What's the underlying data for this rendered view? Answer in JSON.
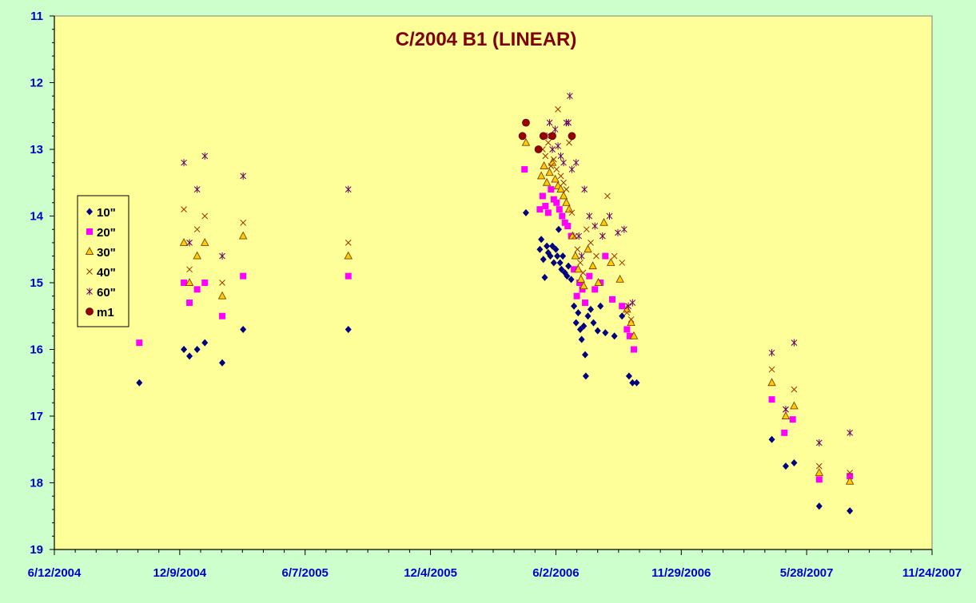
{
  "chart_data": {
    "type": "scatter",
    "title": "C/2004 B1 (LINEAR)",
    "xlabel": "",
    "ylabel": "",
    "x_range": [
      "6/12/2004",
      "11/24/2007"
    ],
    "x_ticks": [
      "6/12/2004",
      "12/9/2004",
      "6/7/2005",
      "12/4/2005",
      "6/2/2006",
      "11/29/2006",
      "5/28/2007",
      "11/24/2007"
    ],
    "y_range": [
      11,
      19
    ],
    "y_reversed": true,
    "y_ticks": [
      "11",
      "12",
      "13",
      "14",
      "15",
      "16",
      "17",
      "18",
      "19"
    ],
    "grid": false,
    "legend_position": "left",
    "colors": {
      "background": "#ccffcc",
      "plot_area": "#ffff99",
      "axis_text": "#0000cc",
      "title": "#800000"
    },
    "series": [
      {
        "name": "10\"",
        "marker": "diamond",
        "color": "#000080",
        "points": [
          [
            "10/12/2004",
            16.5
          ],
          [
            "12/15/2004",
            16.0
          ],
          [
            "12/23/2004",
            16.1
          ],
          [
            "1/3/2005",
            16.0
          ],
          [
            "1/14/2005",
            15.9
          ],
          [
            "2/8/2005",
            16.2
          ],
          [
            "3/10/2005",
            15.7
          ],
          [
            "8/8/2005",
            15.7
          ],
          [
            "4/20/2006",
            13.95
          ],
          [
            "5/10/2006",
            14.5
          ],
          [
            "5/12/2006",
            14.35
          ],
          [
            "5/15/2006",
            14.65
          ],
          [
            "5/17/2006",
            14.92
          ],
          [
            "5/20/2006",
            14.45
          ],
          [
            "5/22/2006",
            14.55
          ],
          [
            "5/25/2006",
            14.6
          ],
          [
            "5/28/2006",
            14.45
          ],
          [
            "5/30/2006",
            14.7
          ],
          [
            "6/2/2006",
            14.5
          ],
          [
            "6/4/2006",
            14.6
          ],
          [
            "6/6/2006",
            14.2
          ],
          [
            "6/8/2006",
            14.7
          ],
          [
            "6/10/2006",
            14.8
          ],
          [
            "6/12/2006",
            14.6
          ],
          [
            "6/15/2006",
            14.85
          ],
          [
            "6/18/2006",
            14.9
          ],
          [
            "6/20/2006",
            14.75
          ],
          [
            "6/24/2006",
            14.95
          ],
          [
            "6/28/2006",
            15.35
          ],
          [
            "7/1/2006",
            15.6
          ],
          [
            "7/4/2006",
            15.45
          ],
          [
            "7/7/2006",
            15.7
          ],
          [
            "7/9/2006",
            15.85
          ],
          [
            "7/12/2006",
            15.65
          ],
          [
            "7/14/2006",
            16.08
          ],
          [
            "7/15/2006",
            16.4
          ],
          [
            "7/18/2006",
            15.5
          ],
          [
            "7/22/2006",
            15.4
          ],
          [
            "7/26/2006",
            15.6
          ],
          [
            "8/1/2006",
            15.72
          ],
          [
            "8/5/2006",
            15.35
          ],
          [
            "8/12/2006",
            15.75
          ],
          [
            "8/25/2006",
            15.8
          ],
          [
            "9/5/2006",
            15.5
          ],
          [
            "9/15/2006",
            16.4
          ],
          [
            "9/20/2006",
            16.5
          ],
          [
            "9/26/2006",
            16.5
          ],
          [
            "4/8/2007",
            17.35
          ],
          [
            "4/28/2007",
            17.75
          ],
          [
            "5/10/2007",
            17.7
          ],
          [
            "6/15/2007",
            18.35
          ],
          [
            "7/29/2007",
            18.42
          ]
        ]
      },
      {
        "name": "20\"",
        "marker": "square",
        "color": "#ff00ff",
        "points": [
          [
            "10/12/2004",
            15.9
          ],
          [
            "12/15/2004",
            15.0
          ],
          [
            "12/23/2004",
            15.3
          ],
          [
            "1/3/2005",
            15.1
          ],
          [
            "1/14/2005",
            15.0
          ],
          [
            "2/8/2005",
            15.5
          ],
          [
            "3/10/2005",
            14.9
          ],
          [
            "8/8/2005",
            14.9
          ],
          [
            "4/18/2006",
            13.3
          ],
          [
            "5/10/2006",
            13.9
          ],
          [
            "5/14/2006",
            13.7
          ],
          [
            "5/18/2006",
            13.85
          ],
          [
            "5/22/2006",
            13.95
          ],
          [
            "5/26/2006",
            13.6
          ],
          [
            "5/30/2006",
            13.75
          ],
          [
            "6/3/2006",
            13.8
          ],
          [
            "6/7/2006",
            13.9
          ],
          [
            "6/11/2006",
            14.0
          ],
          [
            "6/15/2006",
            14.1
          ],
          [
            "6/19/2006",
            14.15
          ],
          [
            "6/24/2006",
            14.3
          ],
          [
            "6/28/2006",
            14.8
          ],
          [
            "7/2/2006",
            15.2
          ],
          [
            "7/6/2006",
            15.0
          ],
          [
            "7/10/2006",
            15.1
          ],
          [
            "7/14/2006",
            15.3
          ],
          [
            "7/20/2006",
            14.9
          ],
          [
            "7/28/2006",
            15.1
          ],
          [
            "8/5/2006",
            15.0
          ],
          [
            "8/12/2006",
            14.6
          ],
          [
            "8/22/2006",
            15.25
          ],
          [
            "9/5/2006",
            15.35
          ],
          [
            "9/12/2006",
            15.7
          ],
          [
            "9/16/2006",
            15.8
          ],
          [
            "9/22/2006",
            16.0
          ],
          [
            "4/8/2007",
            16.75
          ],
          [
            "4/26/2007",
            17.25
          ],
          [
            "5/8/2007",
            17.05
          ],
          [
            "6/15/2007",
            17.95
          ],
          [
            "7/29/2007",
            17.9
          ]
        ]
      },
      {
        "name": "30\"",
        "marker": "triangle",
        "color": "#ffcc00",
        "points": [
          [
            "12/15/2004",
            14.4
          ],
          [
            "12/23/2004",
            15.0
          ],
          [
            "1/3/2005",
            14.6
          ],
          [
            "1/14/2005",
            14.4
          ],
          [
            "2/8/2005",
            15.2
          ],
          [
            "3/10/2005",
            14.3
          ],
          [
            "8/8/2005",
            14.6
          ],
          [
            "4/20/2006",
            12.9
          ],
          [
            "5/12/2006",
            13.4
          ],
          [
            "5/16/2006",
            13.25
          ],
          [
            "5/20/2006",
            13.5
          ],
          [
            "5/24/2006",
            13.35
          ],
          [
            "5/28/2006",
            13.2
          ],
          [
            "6/1/2006",
            13.45
          ],
          [
            "6/5/2006",
            13.55
          ],
          [
            "6/9/2006",
            13.6
          ],
          [
            "6/13/2006",
            13.7
          ],
          [
            "6/17/2006",
            13.8
          ],
          [
            "6/21/2006",
            13.9
          ],
          [
            "6/26/2006",
            14.3
          ],
          [
            "6/30/2006",
            14.6
          ],
          [
            "7/4/2006",
            14.8
          ],
          [
            "7/8/2006",
            14.95
          ],
          [
            "7/12/2006",
            15.05
          ],
          [
            "7/18/2006",
            14.5
          ],
          [
            "7/25/2006",
            14.75
          ],
          [
            "8/2/2006",
            15.0
          ],
          [
            "8/10/2006",
            14.1
          ],
          [
            "8/20/2006",
            14.7
          ],
          [
            "9/2/2006",
            14.95
          ],
          [
            "9/12/2006",
            15.4
          ],
          [
            "9/18/2006",
            15.6
          ],
          [
            "9/22/2006",
            15.8
          ],
          [
            "4/8/2007",
            16.5
          ],
          [
            "4/28/2007",
            17.0
          ],
          [
            "5/10/2007",
            16.85
          ],
          [
            "6/15/2007",
            17.85
          ],
          [
            "7/29/2007",
            17.98
          ]
        ]
      },
      {
        "name": "40\"",
        "marker": "x",
        "color": "#993300",
        "points": [
          [
            "12/15/2004",
            13.9
          ],
          [
            "12/23/2004",
            14.8
          ],
          [
            "1/3/2005",
            14.2
          ],
          [
            "1/14/2005",
            14.0
          ],
          [
            "2/8/2005",
            15.0
          ],
          [
            "3/10/2005",
            14.1
          ],
          [
            "8/8/2005",
            14.4
          ],
          [
            "5/14/2006",
            13.0
          ],
          [
            "5/18/2006",
            13.1
          ],
          [
            "5/22/2006",
            12.9
          ],
          [
            "5/26/2006",
            13.25
          ],
          [
            "5/30/2006",
            13.15
          ],
          [
            "6/3/2006",
            13.3
          ],
          [
            "6/5/2006",
            12.4
          ],
          [
            "6/9/2006",
            13.4
          ],
          [
            "6/13/2006",
            13.5
          ],
          [
            "6/17/2006",
            13.6
          ],
          [
            "6/21/2006",
            12.9
          ],
          [
            "6/25/2006",
            13.95
          ],
          [
            "6/29/2006",
            14.3
          ],
          [
            "7/3/2006",
            14.5
          ],
          [
            "7/7/2006",
            14.7
          ],
          [
            "7/11/2006",
            14.85
          ],
          [
            "7/16/2006",
            14.2
          ],
          [
            "7/22/2006",
            14.4
          ],
          [
            "7/30/2006",
            14.6
          ],
          [
            "8/8/2006",
            14.3
          ],
          [
            "8/15/2006",
            13.7
          ],
          [
            "8/25/2006",
            14.6
          ],
          [
            "9/5/2006",
            14.7
          ],
          [
            "9/12/2006",
            15.45
          ],
          [
            "9/18/2006",
            15.55
          ],
          [
            "4/8/2007",
            16.3
          ],
          [
            "4/28/2007",
            16.9
          ],
          [
            "5/10/2007",
            16.6
          ],
          [
            "6/15/2007",
            17.75
          ],
          [
            "7/29/2007",
            17.85
          ]
        ]
      },
      {
        "name": "60\"",
        "marker": "star",
        "color": "#660066",
        "points": [
          [
            "12/15/2004",
            13.2
          ],
          [
            "12/23/2004",
            14.4
          ],
          [
            "1/3/2005",
            13.6
          ],
          [
            "1/14/2005",
            13.1
          ],
          [
            "2/8/2005",
            14.6
          ],
          [
            "3/10/2005",
            13.4
          ],
          [
            "8/8/2005",
            13.6
          ],
          [
            "5/20/2006",
            12.8
          ],
          [
            "5/24/2006",
            12.6
          ],
          [
            "5/28/2006",
            13.0
          ],
          [
            "6/1/2006",
            12.7
          ],
          [
            "6/5/2006",
            12.95
          ],
          [
            "6/9/2006",
            13.1
          ],
          [
            "6/13/2006",
            13.2
          ],
          [
            "6/17/2006",
            12.6
          ],
          [
            "6/20/2006",
            12.6
          ],
          [
            "6/22/2006",
            12.2
          ],
          [
            "6/25/2006",
            13.3
          ],
          [
            "7/1/2006",
            13.2
          ],
          [
            "7/5/2006",
            14.3
          ],
          [
            "7/9/2006",
            14.6
          ],
          [
            "7/13/2006",
            13.6
          ],
          [
            "7/20/2006",
            14.0
          ],
          [
            "7/28/2006",
            14.15
          ],
          [
            "8/8/2006",
            14.3
          ],
          [
            "8/18/2006",
            14.0
          ],
          [
            "8/30/2006",
            14.25
          ],
          [
            "9/8/2006",
            14.2
          ],
          [
            "9/14/2006",
            15.35
          ],
          [
            "9/20/2006",
            15.3
          ],
          [
            "4/8/2007",
            16.05
          ],
          [
            "4/28/2007",
            16.9
          ],
          [
            "5/10/2007",
            15.9
          ],
          [
            "6/15/2007",
            17.4
          ],
          [
            "7/29/2007",
            17.25
          ]
        ]
      },
      {
        "name": "m1",
        "marker": "circle",
        "color": "#990000",
        "points": [
          [
            "4/15/2006",
            12.8
          ],
          [
            "4/20/2006",
            12.6
          ],
          [
            "5/8/2006",
            13.0
          ],
          [
            "5/15/2006",
            12.8
          ],
          [
            "5/28/2006",
            12.8
          ],
          [
            "6/25/2006",
            12.8
          ]
        ]
      }
    ]
  }
}
